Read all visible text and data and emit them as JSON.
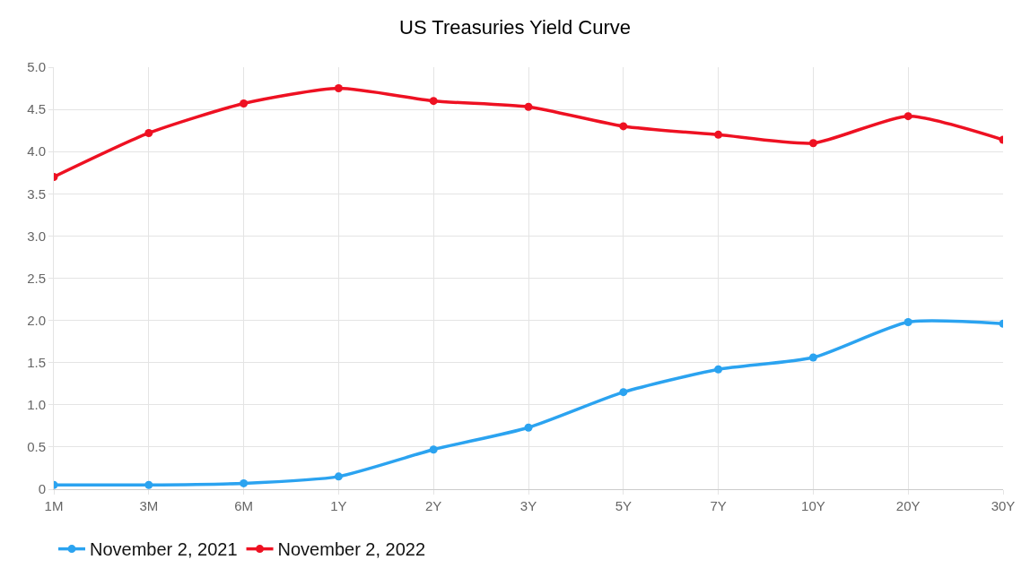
{
  "chart_data": {
    "type": "line",
    "title": "US Treasuries Yield Curve",
    "categories": [
      "1M",
      "3M",
      "6M",
      "1Y",
      "2Y",
      "3Y",
      "5Y",
      "7Y",
      "10Y",
      "20Y",
      "30Y"
    ],
    "series": [
      {
        "name": "November 2, 2021",
        "color": "#2ba3f0",
        "values": [
          0.05,
          0.05,
          0.07,
          0.15,
          0.47,
          0.73,
          1.15,
          1.42,
          1.56,
          1.98,
          1.96
        ]
      },
      {
        "name": "November 2, 2022",
        "color": "#ee1122",
        "values": [
          3.7,
          4.22,
          4.57,
          4.75,
          4.6,
          4.53,
          4.3,
          4.2,
          4.1,
          4.42,
          4.14
        ]
      }
    ],
    "ylim": [
      0,
      5
    ],
    "yticks": [
      0,
      {
        "value": 0.5,
        "label": "0.5"
      },
      {
        "value": 1,
        "label": "1.0"
      },
      {
        "value": 1.5,
        "label": "1.5"
      },
      {
        "value": 2,
        "label": "2.0"
      },
      {
        "value": 2.5,
        "label": "2.5"
      },
      {
        "value": 3,
        "label": "3.0"
      },
      {
        "value": 3.5,
        "label": "3.5"
      },
      {
        "value": 4,
        "label": "4.0"
      },
      {
        "value": 4.5,
        "label": "4.5"
      },
      {
        "value": 5,
        "label": "5.0"
      }
    ],
    "grid": true,
    "legend": "bottom left",
    "marker": "circle",
    "line_style": "solid"
  }
}
